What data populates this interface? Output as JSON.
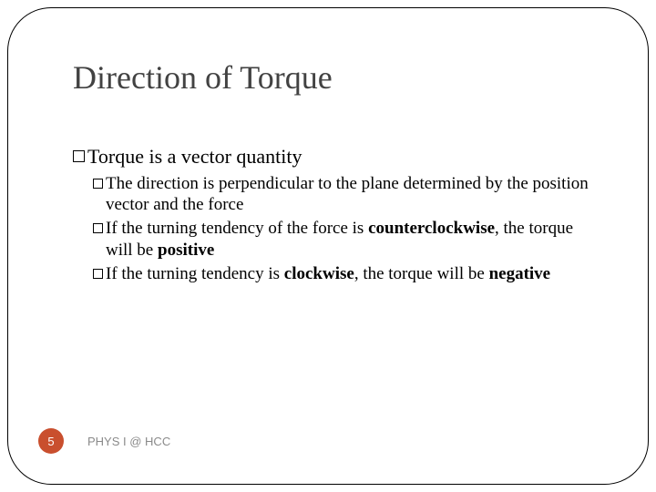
{
  "title": "Direction of Torque",
  "colors": {
    "title_color": "#424242",
    "text_color": "#000000",
    "frame_color": "#000000",
    "badge_bg": "#c94f2e",
    "badge_fg": "#ffffff",
    "footer_color": "#8a8a8a",
    "background": "#ffffff"
  },
  "typography": {
    "title_fontsize": 36,
    "l1_fontsize": 22,
    "l2_fontsize": 19,
    "footer_fontsize": 13,
    "serif_family": "Georgia, 'Times New Roman', serif",
    "sans_family": "Arial, Helvetica, sans-serif"
  },
  "bullets": {
    "main": "Torque is a vector quantity",
    "sub1_a": "The direction is perpendicular to the plane determined by the position vector and the force",
    "sub2_a": "If the turning tendency of the force is ",
    "sub2_b": "counterclockwise",
    "sub2_c": ", the torque will be ",
    "sub2_d": "positive",
    "sub3_a": "If the turning tendency is ",
    "sub3_b": "clockwise",
    "sub3_c": ", the torque will be ",
    "sub3_d": "negative"
  },
  "footer": {
    "page": "5",
    "label": "PHYS I @ HCC"
  }
}
